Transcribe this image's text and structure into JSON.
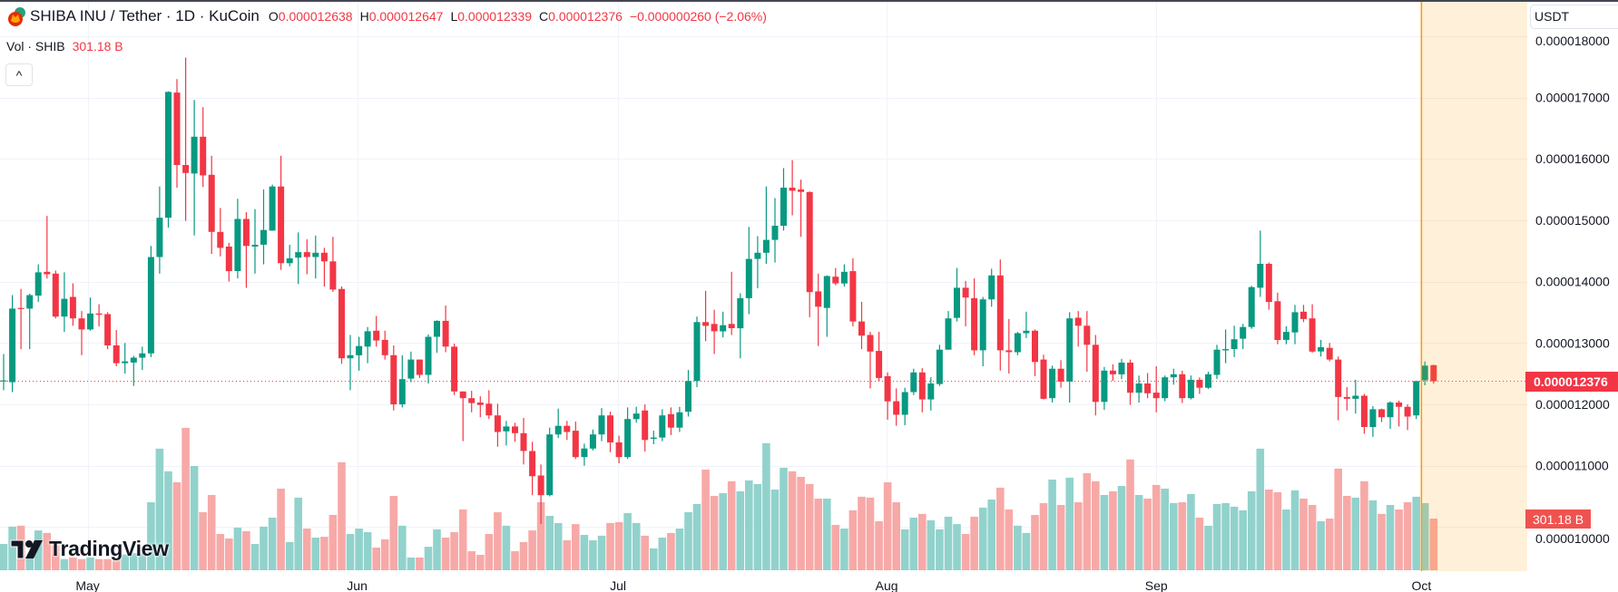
{
  "header": {
    "title": "SHIBA INU / Tether · 1D · KuCoin",
    "ohlc": [
      {
        "key": "O",
        "value": "0.000012638"
      },
      {
        "key": "H",
        "value": "0.000012647"
      },
      {
        "key": "L",
        "value": "0.000012339"
      },
      {
        "key": "C",
        "value": "0.000012376"
      }
    ],
    "change": "−0.000000260 (−2.06%)",
    "volume_label": "Vol · SHIB",
    "volume_value": "301.18 B",
    "collapse_icon": "chevron-up-icon",
    "collapse_glyph": "^"
  },
  "currency_selector": "USDT",
  "branding": "TradingView",
  "colors": {
    "up": "#089981",
    "down": "#f23645",
    "vol_up": "#92d2cc",
    "vol_down": "#f7a9a7",
    "highlight": "#ff9800",
    "highlight_fill": "rgba(255,152,0,0.15)",
    "grid": "#f0f3fa"
  },
  "chart_data": {
    "type": "candlestick",
    "symbol": "SHIBA INU / Tether",
    "interval": "1D",
    "exchange": "KuCoin",
    "price_unit": "1e-6 USDT",
    "volume_unit": "B SHIB",
    "y_ticks": [
      "0.000010000",
      "0.000011000",
      "0.000012000",
      "0.000013000",
      "0.000014000",
      "0.000015000",
      "0.000016000",
      "0.000017000",
      "0.000018000"
    ],
    "x_ticks": [
      {
        "label": "May",
        "bar": 9.7
      },
      {
        "label": "Jun",
        "bar": 40.8
      },
      {
        "label": "Jul",
        "bar": 70.9
      },
      {
        "label": "Aug",
        "bar": 101.9
      },
      {
        "label": "Sep",
        "bar": 133
      },
      {
        "label": "Oct",
        "bar": 163.6
      }
    ],
    "last_price_label": "0.000012376",
    "last_volume_label": "301.18 B",
    "highlight_from_bar": 163.6,
    "ohlc": [
      [
        12.38,
        12.82,
        12.23,
        12.39
      ],
      [
        12.36,
        13.78,
        12.2,
        13.56
      ],
      [
        13.57,
        13.88,
        12.9,
        13.56
      ],
      [
        13.56,
        13.8,
        12.9,
        13.78
      ],
      [
        13.77,
        14.28,
        13.67,
        14.15
      ],
      [
        14.16,
        15.07,
        14.05,
        14.12
      ],
      [
        14.13,
        14.18,
        13.4,
        13.43
      ],
      [
        13.43,
        14.15,
        13.18,
        13.72
      ],
      [
        13.75,
        13.97,
        13.28,
        13.4
      ],
      [
        13.4,
        13.52,
        12.8,
        13.22
      ],
      [
        13.22,
        13.74,
        13.2,
        13.48
      ],
      [
        13.48,
        13.63,
        13.27,
        13.46
      ],
      [
        13.47,
        13.5,
        12.9,
        12.96
      ],
      [
        12.96,
        13.21,
        12.62,
        12.67
      ],
      [
        12.67,
        13.0,
        12.5,
        12.7
      ],
      [
        12.68,
        12.79,
        12.3,
        12.76
      ],
      [
        12.76,
        12.94,
        12.56,
        12.83
      ],
      [
        12.83,
        14.58,
        12.77,
        14.4
      ],
      [
        14.4,
        15.55,
        14.13,
        15.04
      ],
      [
        15.04,
        17.1,
        14.88,
        17.09
      ],
      [
        17.08,
        17.3,
        15.53,
        15.9
      ],
      [
        15.9,
        17.65,
        14.99,
        15.77
      ],
      [
        15.76,
        16.96,
        14.75,
        16.36
      ],
      [
        16.36,
        16.84,
        15.54,
        15.73
      ],
      [
        15.74,
        16.05,
        14.45,
        14.81
      ],
      [
        14.81,
        15.2,
        14.41,
        14.55
      ],
      [
        14.57,
        14.63,
        14.0,
        14.17
      ],
      [
        14.17,
        15.35,
        14.05,
        15.02
      ],
      [
        15.02,
        15.13,
        13.9,
        14.58
      ],
      [
        14.57,
        15.18,
        14.13,
        14.6
      ],
      [
        14.6,
        15.5,
        14.28,
        14.84
      ],
      [
        14.83,
        15.58,
        14.83,
        15.55
      ],
      [
        15.55,
        16.05,
        14.19,
        14.3
      ],
      [
        14.3,
        14.6,
        14.25,
        14.38
      ],
      [
        14.39,
        14.8,
        13.96,
        14.48
      ],
      [
        14.48,
        14.69,
        14.12,
        14.4
      ],
      [
        14.4,
        14.75,
        14.05,
        14.47
      ],
      [
        14.47,
        14.55,
        13.92,
        14.33
      ],
      [
        14.33,
        14.73,
        13.83,
        13.87
      ],
      [
        13.88,
        13.92,
        12.66,
        12.75
      ],
      [
        12.75,
        13.13,
        12.23,
        12.8
      ],
      [
        12.8,
        13.1,
        12.55,
        12.95
      ],
      [
        12.94,
        13.26,
        12.67,
        13.19
      ],
      [
        13.2,
        13.44,
        12.94,
        13.04
      ],
      [
        13.05,
        13.2,
        12.73,
        12.8
      ],
      [
        12.8,
        12.96,
        11.9,
        12.0
      ],
      [
        12.0,
        12.8,
        11.95,
        12.41
      ],
      [
        12.42,
        12.86,
        12.36,
        12.73
      ],
      [
        12.73,
        12.73,
        12.43,
        12.48
      ],
      [
        12.48,
        13.14,
        12.34,
        13.1
      ],
      [
        13.1,
        13.37,
        12.84,
        13.36
      ],
      [
        13.36,
        13.61,
        12.85,
        12.94
      ],
      [
        12.94,
        12.99,
        12.15,
        12.21
      ],
      [
        12.21,
        12.21,
        11.4,
        12.1
      ],
      [
        12.1,
        12.22,
        11.87,
        12.02
      ],
      [
        12.03,
        12.13,
        11.79,
        11.99
      ],
      [
        12.01,
        12.23,
        11.76,
        11.82
      ],
      [
        11.82,
        12.01,
        11.31,
        11.55
      ],
      [
        11.56,
        11.73,
        11.33,
        11.64
      ],
      [
        11.64,
        11.7,
        11.39,
        11.53
      ],
      [
        11.53,
        11.78,
        11.02,
        11.24
      ],
      [
        11.24,
        11.39,
        10.52,
        10.83
      ],
      [
        10.84,
        11.02,
        10.05,
        10.52
      ],
      [
        10.52,
        11.62,
        10.5,
        11.51
      ],
      [
        11.51,
        11.93,
        11.45,
        11.65
      ],
      [
        11.65,
        11.73,
        11.42,
        11.55
      ],
      [
        11.57,
        11.72,
        11.11,
        11.14
      ],
      [
        11.14,
        11.36,
        11.0,
        11.28
      ],
      [
        11.28,
        11.59,
        11.25,
        11.51
      ],
      [
        11.51,
        11.94,
        11.4,
        11.82
      ],
      [
        11.82,
        11.88,
        11.22,
        11.38
      ],
      [
        11.38,
        11.49,
        11.04,
        11.14
      ],
      [
        11.14,
        11.95,
        11.11,
        11.76
      ],
      [
        11.76,
        11.96,
        11.7,
        11.85
      ],
      [
        11.9,
        12.0,
        11.23,
        11.42
      ],
      [
        11.44,
        11.57,
        11.35,
        11.46
      ],
      [
        11.46,
        11.92,
        11.4,
        11.82
      ],
      [
        11.84,
        11.95,
        11.5,
        11.62
      ],
      [
        11.62,
        11.96,
        11.55,
        11.87
      ],
      [
        11.88,
        12.56,
        11.8,
        12.38
      ],
      [
        12.38,
        13.43,
        12.28,
        13.34
      ],
      [
        13.34,
        13.85,
        13.03,
        13.28
      ],
      [
        13.31,
        13.54,
        12.82,
        13.19
      ],
      [
        13.19,
        13.51,
        13.09,
        13.29
      ],
      [
        13.31,
        14.16,
        13.13,
        13.24
      ],
      [
        13.24,
        13.81,
        12.75,
        13.73
      ],
      [
        13.73,
        14.89,
        13.47,
        14.37
      ],
      [
        14.37,
        14.74,
        13.89,
        14.47
      ],
      [
        14.47,
        15.55,
        14.29,
        14.68
      ],
      [
        14.68,
        15.36,
        14.31,
        14.91
      ],
      [
        14.91,
        15.85,
        14.83,
        15.53
      ],
      [
        15.53,
        15.98,
        15.08,
        15.48
      ],
      [
        15.5,
        15.66,
        14.73,
        15.46
      ],
      [
        15.46,
        15.47,
        13.42,
        13.83
      ],
      [
        13.84,
        14.13,
        12.95,
        13.59
      ],
      [
        13.57,
        14.1,
        13.1,
        14.09
      ],
      [
        14.08,
        14.22,
        13.94,
        13.97
      ],
      [
        13.97,
        14.28,
        13.92,
        14.16
      ],
      [
        14.17,
        14.38,
        13.27,
        13.35
      ],
      [
        13.35,
        13.67,
        12.9,
        13.12
      ],
      [
        13.13,
        13.18,
        12.26,
        12.86
      ],
      [
        12.87,
        13.18,
        12.38,
        12.43
      ],
      [
        12.46,
        12.52,
        11.75,
        12.05
      ],
      [
        12.05,
        12.26,
        11.65,
        11.83
      ],
      [
        11.83,
        12.27,
        11.66,
        12.2
      ],
      [
        12.2,
        12.58,
        12.15,
        12.52
      ],
      [
        12.52,
        12.59,
        11.87,
        12.08
      ],
      [
        12.08,
        12.44,
        11.9,
        12.34
      ],
      [
        12.33,
        12.97,
        12.3,
        12.89
      ],
      [
        12.89,
        13.52,
        12.89,
        13.4
      ],
      [
        13.41,
        14.22,
        13.35,
        13.9
      ],
      [
        13.9,
        14.01,
        13.27,
        13.74
      ],
      [
        13.73,
        14.05,
        12.8,
        12.88
      ],
      [
        12.88,
        13.75,
        12.62,
        13.71
      ],
      [
        13.71,
        14.21,
        13.59,
        14.1
      ],
      [
        14.1,
        14.36,
        12.55,
        12.88
      ],
      [
        12.88,
        13.39,
        12.5,
        12.85
      ],
      [
        12.85,
        13.18,
        12.8,
        13.16
      ],
      [
        13.16,
        13.51,
        13.08,
        13.2
      ],
      [
        13.2,
        13.22,
        12.46,
        12.69
      ],
      [
        12.73,
        12.81,
        12.08,
        12.09
      ],
      [
        12.1,
        12.63,
        12.03,
        12.58
      ],
      [
        12.58,
        12.72,
        12.27,
        12.37
      ],
      [
        12.37,
        13.5,
        12.03,
        13.4
      ],
      [
        13.41,
        13.52,
        12.94,
        13.28
      ],
      [
        13.28,
        13.52,
        12.53,
        12.97
      ],
      [
        12.97,
        13.13,
        11.82,
        12.04
      ],
      [
        12.04,
        12.61,
        11.91,
        12.55
      ],
      [
        12.55,
        12.65,
        12.38,
        12.49
      ],
      [
        12.49,
        12.74,
        12.41,
        12.68
      ],
      [
        12.68,
        12.73,
        11.99,
        12.19
      ],
      [
        12.19,
        12.47,
        12.03,
        12.34
      ],
      [
        12.34,
        12.51,
        12.1,
        12.18
      ],
      [
        12.19,
        12.62,
        11.87,
        12.1
      ],
      [
        12.1,
        12.47,
        12.05,
        12.44
      ],
      [
        12.44,
        12.58,
        12.32,
        12.49
      ],
      [
        12.49,
        12.55,
        12.02,
        12.1
      ],
      [
        12.1,
        12.47,
        12.08,
        12.4
      ],
      [
        12.4,
        12.44,
        12.17,
        12.27
      ],
      [
        12.27,
        12.53,
        12.25,
        12.49
      ],
      [
        12.48,
        12.97,
        12.41,
        12.89
      ],
      [
        12.88,
        13.22,
        12.67,
        12.9
      ],
      [
        12.9,
        13.28,
        12.77,
        13.06
      ],
      [
        13.07,
        13.31,
        12.9,
        13.26
      ],
      [
        13.26,
        13.93,
        13.23,
        13.91
      ],
      [
        13.9,
        14.83,
        13.75,
        14.29
      ],
      [
        14.29,
        14.31,
        13.54,
        13.67
      ],
      [
        13.68,
        13.82,
        12.98,
        13.05
      ],
      [
        13.05,
        13.27,
        12.98,
        13.18
      ],
      [
        13.17,
        13.62,
        12.98,
        13.5
      ],
      [
        13.51,
        13.62,
        13.34,
        13.39
      ],
      [
        13.4,
        13.63,
        12.84,
        12.86
      ],
      [
        12.86,
        13.05,
        12.78,
        12.93
      ],
      [
        12.92,
        13.0,
        12.7,
        12.73
      ],
      [
        12.73,
        12.78,
        11.74,
        12.12
      ],
      [
        12.12,
        12.28,
        11.9,
        12.09
      ],
      [
        12.09,
        12.4,
        11.85,
        12.14
      ],
      [
        12.14,
        12.17,
        11.52,
        11.63
      ],
      [
        11.63,
        11.97,
        11.47,
        11.92
      ],
      [
        11.92,
        11.93,
        11.71,
        11.79
      ],
      [
        11.79,
        12.05,
        11.6,
        12.03
      ],
      [
        12.03,
        12.06,
        11.64,
        11.96
      ],
      [
        11.96,
        12.0,
        11.58,
        11.8
      ],
      [
        11.82,
        12.38,
        11.76,
        12.38
      ],
      [
        12.39,
        12.7,
        12.31,
        12.63
      ],
      [
        12.638,
        12.647,
        12.339,
        12.376
      ]
    ],
    "volume": [
      153,
      254,
      259,
      70,
      232,
      217,
      144,
      65,
      74,
      65,
      74,
      65,
      65,
      65,
      92,
      100,
      100,
      396,
      708,
      576,
      512,
      829,
      607,
      338,
      438,
      211,
      185,
      248,
      227,
      153,
      254,
      306,
      475,
      164,
      423,
      243,
      190,
      195,
      322,
      629,
      211,
      243,
      222,
      132,
      180,
      433,
      259,
      74,
      74,
      137,
      238,
      190,
      222,
      354,
      111,
      90,
      211,
      338,
      259,
      111,
      164,
      232,
      396,
      317,
      275,
      174,
      269,
      206,
      174,
      201,
      275,
      280,
      333,
      275,
      201,
      127,
      190,
      217,
      243,
      338,
      386,
      586,
      433,
      449,
      518,
      460,
      523,
      502,
      740,
      470,
      597,
      576,
      544,
      502,
      417,
      417,
      264,
      243,
      349,
      428,
      423,
      285,
      512,
      396,
      238,
      306,
      328,
      291,
      238,
      312,
      269,
      211,
      312,
      365,
      412,
      481,
      354,
      259,
      217,
      322,
      391,
      528,
      380,
      539,
      396,
      565,
      518,
      438,
      460,
      491,
      645,
      438,
      417,
      497,
      475,
      391,
      396,
      444,
      306,
      259,
      386,
      391,
      370,
      349,
      460,
      708,
      470,
      454,
      354,
      465,
      417,
      380,
      285,
      301,
      592,
      433,
      423,
      518,
      407,
      328,
      380,
      354,
      396,
      428,
      391,
      301.18
    ]
  }
}
